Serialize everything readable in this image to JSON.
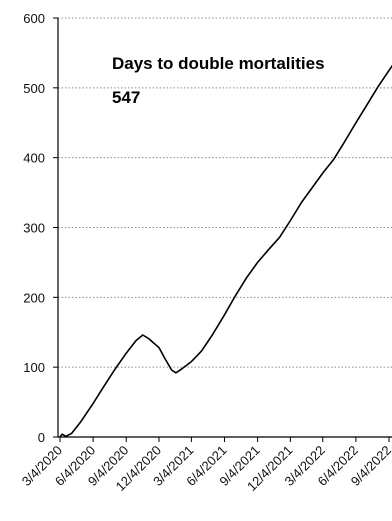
{
  "chart_data": {
    "type": "line",
    "title": "",
    "xlabel": "",
    "ylabel": "",
    "ylim": [
      0,
      600
    ],
    "grid": true,
    "legend": "none",
    "x_ticks": [
      "3/4/2020",
      "6/4/2020",
      "9/4/2020",
      "12/4/2020",
      "3/4/2021",
      "6/4/2021",
      "9/4/2021",
      "12/4/2021",
      "3/4/2022",
      "6/4/2022",
      "9/4/2022"
    ],
    "y_ticks": [
      0,
      100,
      200,
      300,
      400,
      500,
      600
    ],
    "annotation": {
      "title": "Days to double mortalities",
      "value": "547"
    },
    "series": [
      {
        "color": "#000000",
        "points": [
          {
            "x": "2020-03-04",
            "y": 0
          },
          {
            "x": "2020-03-10",
            "y": 4
          },
          {
            "x": "2020-03-20",
            "y": 1
          },
          {
            "x": "2020-04-05",
            "y": 5
          },
          {
            "x": "2020-05-01",
            "y": 22
          },
          {
            "x": "2020-06-04",
            "y": 48
          },
          {
            "x": "2020-07-01",
            "y": 70
          },
          {
            "x": "2020-08-01",
            "y": 95
          },
          {
            "x": "2020-09-04",
            "y": 120
          },
          {
            "x": "2020-10-01",
            "y": 138
          },
          {
            "x": "2020-10-20",
            "y": 146
          },
          {
            "x": "2020-11-05",
            "y": 141
          },
          {
            "x": "2020-12-04",
            "y": 128
          },
          {
            "x": "2020-12-20",
            "y": 113
          },
          {
            "x": "2021-01-08",
            "y": 96
          },
          {
            "x": "2021-01-20",
            "y": 92
          },
          {
            "x": "2021-02-04",
            "y": 97
          },
          {
            "x": "2021-03-04",
            "y": 108
          },
          {
            "x": "2021-04-01",
            "y": 123
          },
          {
            "x": "2021-05-01",
            "y": 146
          },
          {
            "x": "2021-06-04",
            "y": 175
          },
          {
            "x": "2021-07-04",
            "y": 202
          },
          {
            "x": "2021-08-04",
            "y": 228
          },
          {
            "x": "2021-09-04",
            "y": 250
          },
          {
            "x": "2021-10-04",
            "y": 268
          },
          {
            "x": "2021-11-04",
            "y": 286
          },
          {
            "x": "2021-12-04",
            "y": 310
          },
          {
            "x": "2022-01-04",
            "y": 336
          },
          {
            "x": "2022-02-04",
            "y": 358
          },
          {
            "x": "2022-03-04",
            "y": 378
          },
          {
            "x": "2022-04-04",
            "y": 398
          },
          {
            "x": "2022-05-04",
            "y": 423
          },
          {
            "x": "2022-06-04",
            "y": 450
          },
          {
            "x": "2022-07-04",
            "y": 475
          },
          {
            "x": "2022-08-04",
            "y": 501
          },
          {
            "x": "2022-09-04",
            "y": 525
          },
          {
            "x": "2022-10-04",
            "y": 547
          }
        ]
      }
    ]
  }
}
